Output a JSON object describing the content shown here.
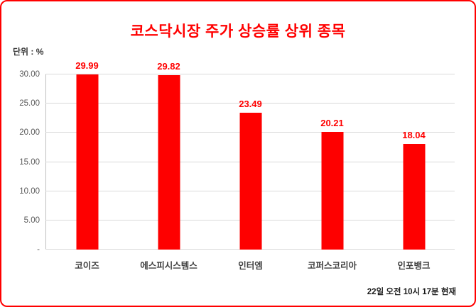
{
  "frame": {
    "border_color": "#ff0000",
    "background": "#ffffff"
  },
  "title": "코스닥시장 주가 상승률 상위 종목",
  "unit_label": "단위 : %",
  "footer": "22일 오전 10시 17분 현재",
  "chart_data": {
    "type": "bar",
    "title": "코스닥시장 주가 상승률 상위 종목",
    "categories": [
      "코이즈",
      "에스피시스템스",
      "인터엠",
      "코퍼스코리아",
      "인포뱅크"
    ],
    "values": [
      29.99,
      29.82,
      23.49,
      20.21,
      18.04
    ],
    "value_labels": [
      "29.99",
      "29.82",
      "23.49",
      "20.21",
      "18.04"
    ],
    "xlabel": "",
    "ylabel": "단위 : %",
    "ylim": [
      0,
      30
    ],
    "yticks": [
      {
        "label": "30.00",
        "value": 30
      },
      {
        "label": "25.00",
        "value": 25
      },
      {
        "label": "20.00",
        "value": 20
      },
      {
        "label": "15.00",
        "value": 15
      },
      {
        "label": "10.00",
        "value": 10
      },
      {
        "label": "5.00",
        "value": 5
      },
      {
        "label": "-",
        "value": 0
      }
    ],
    "bar_color": "#fe0000",
    "value_label_color": "#ff0000",
    "grid": true,
    "legend": "none",
    "note": "22일 오전 10시 17분 현재"
  }
}
